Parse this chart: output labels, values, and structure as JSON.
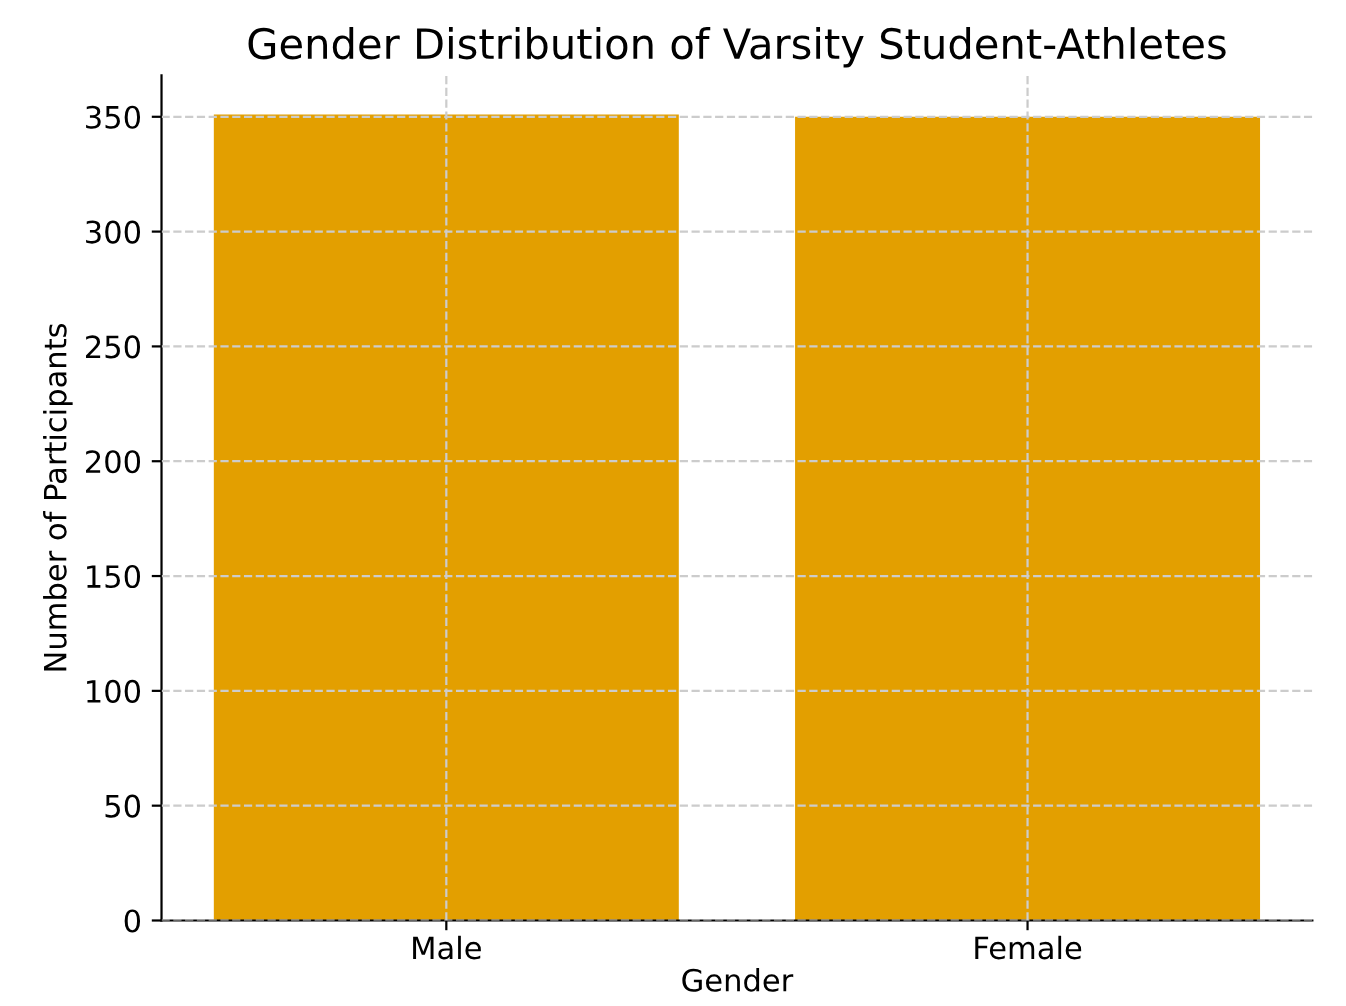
{
  "chart_data": {
    "type": "bar",
    "title": "Gender Distribution of Varsity Student-Athletes",
    "xlabel": "Gender",
    "ylabel": "Number of Participants",
    "categories": [
      "Male",
      "Female"
    ],
    "values": [
      351,
      350
    ],
    "color": "#e39f00",
    "ylim": [
      0,
      368
    ],
    "yticks": [
      0,
      50,
      100,
      150,
      200,
      250,
      300,
      350
    ],
    "grid": true
  }
}
